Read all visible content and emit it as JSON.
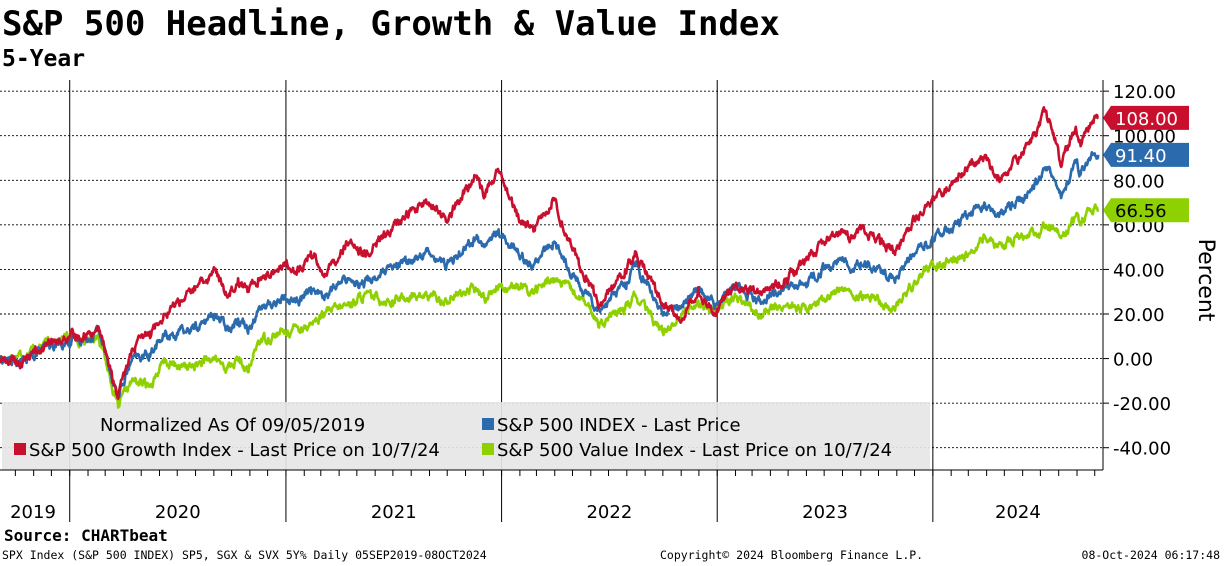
{
  "title": "S&P 500 Headline, Growth & Value Index",
  "subtitle": "5-Year",
  "source": "Source: CHARTbeat",
  "footer": {
    "left": "SPX Index (S&P 500 INDEX) SP5, SGX & SVX 5Y% Daily 05SEP2019-08OCT2024",
    "middle": "Copyright© 2024 Bloomberg Finance L.P.",
    "right": "08-Oct-2024 06:17:48"
  },
  "colors": {
    "growth": "#c8102e",
    "headline": "#2a6aad",
    "value": "#8fd100",
    "grid": "#000000",
    "legend_bg": "#e6e6e6"
  },
  "chart_data": {
    "type": "line",
    "ylabel": "Percent",
    "ylim": [
      -50,
      125
    ],
    "yticks": [
      -40,
      -20,
      0,
      20,
      40,
      60,
      80,
      100,
      120
    ],
    "ytick_labels": [
      "-40.00",
      "-20.00",
      "0.00",
      "20.00",
      "40.00",
      "60.00",
      "80.00",
      "100.00",
      "120.00"
    ],
    "xlim": [
      "2019-09-05",
      "2024-10-15"
    ],
    "year_labels": [
      "2019",
      "2020",
      "2021",
      "2022",
      "2023",
      "2024"
    ],
    "legend": {
      "placement": "bottom-left",
      "note": "Normalized As Of 09/05/2019"
    },
    "last_value_tags": [
      {
        "series": "growth",
        "label": "108.00",
        "value": 108.0
      },
      {
        "series": "headline",
        "label": "91.40",
        "value": 91.4
      },
      {
        "series": "value",
        "label": "66.56",
        "value": 66.56
      }
    ],
    "series": [
      {
        "key": "growth",
        "name": "S&P 500 Growth Index - Last Price on 10/7/24",
        "points": [
          [
            "2019-09-05",
            0
          ],
          [
            "2019-10-10",
            -2
          ],
          [
            "2019-11-15",
            5
          ],
          [
            "2019-12-31",
            9
          ],
          [
            "2020-01-31",
            11
          ],
          [
            "2020-02-19",
            14
          ],
          [
            "2020-03-23",
            -18
          ],
          [
            "2020-04-15",
            4
          ],
          [
            "2020-05-15",
            12
          ],
          [
            "2020-06-08",
            20
          ],
          [
            "2020-07-15",
            28
          ],
          [
            "2020-08-15",
            34
          ],
          [
            "2020-09-02",
            40
          ],
          [
            "2020-09-23",
            28
          ],
          [
            "2020-10-12",
            36
          ],
          [
            "2020-10-30",
            30
          ],
          [
            "2020-11-15",
            36
          ],
          [
            "2020-12-31",
            42
          ],
          [
            "2021-01-27",
            40
          ],
          [
            "2021-02-12",
            48
          ],
          [
            "2021-03-08",
            38
          ],
          [
            "2021-04-15",
            52
          ],
          [
            "2021-05-12",
            46
          ],
          [
            "2021-06-30",
            58
          ],
          [
            "2021-07-30",
            66
          ],
          [
            "2021-08-31",
            70
          ],
          [
            "2021-09-30",
            62
          ],
          [
            "2021-10-29",
            74
          ],
          [
            "2021-11-19",
            82
          ],
          [
            "2021-12-03",
            74
          ],
          [
            "2021-12-27",
            84
          ],
          [
            "2022-01-27",
            64
          ],
          [
            "2022-02-24",
            57
          ],
          [
            "2022-03-29",
            72
          ],
          [
            "2022-05-12",
            42
          ],
          [
            "2022-06-16",
            24
          ],
          [
            "2022-07-29",
            40
          ],
          [
            "2022-08-16",
            48
          ],
          [
            "2022-09-30",
            24
          ],
          [
            "2022-11-03",
            18
          ],
          [
            "2022-11-30",
            32
          ],
          [
            "2022-12-28",
            20
          ],
          [
            "2023-02-02",
            34
          ],
          [
            "2023-03-13",
            30
          ],
          [
            "2023-04-28",
            36
          ],
          [
            "2023-05-31",
            44
          ],
          [
            "2023-06-30",
            52
          ],
          [
            "2023-07-31",
            58
          ],
          [
            "2023-08-18",
            54
          ],
          [
            "2023-09-01",
            58
          ],
          [
            "2023-10-27",
            48
          ],
          [
            "2023-11-30",
            62
          ],
          [
            "2023-12-29",
            70
          ],
          [
            "2024-01-31",
            78
          ],
          [
            "2024-02-29",
            86
          ],
          [
            "2024-03-28",
            90
          ],
          [
            "2024-04-19",
            80
          ],
          [
            "2024-05-31",
            92
          ],
          [
            "2024-06-28",
            104
          ],
          [
            "2024-07-10",
            111
          ],
          [
            "2024-07-25",
            98
          ],
          [
            "2024-08-05",
            86
          ],
          [
            "2024-08-30",
            104
          ],
          [
            "2024-09-06",
            98
          ],
          [
            "2024-09-30",
            108
          ],
          [
            "2024-10-07",
            108
          ]
        ]
      },
      {
        "key": "headline",
        "name": "S&P 500 INDEX - Last Price",
        "points": [
          [
            "2019-09-05",
            0
          ],
          [
            "2019-10-10",
            -2
          ],
          [
            "2019-11-15",
            4
          ],
          [
            "2019-12-31",
            8
          ],
          [
            "2020-01-31",
            9
          ],
          [
            "2020-02-19",
            13
          ],
          [
            "2020-03-23",
            -17
          ],
          [
            "2020-04-15",
            -1
          ],
          [
            "2020-05-15",
            2
          ],
          [
            "2020-06-08",
            10
          ],
          [
            "2020-07-15",
            12
          ],
          [
            "2020-08-15",
            16
          ],
          [
            "2020-09-02",
            20
          ],
          [
            "2020-09-23",
            14
          ],
          [
            "2020-10-12",
            18
          ],
          [
            "2020-10-30",
            14
          ],
          [
            "2020-11-15",
            22
          ],
          [
            "2020-12-31",
            27
          ],
          [
            "2021-01-27",
            26
          ],
          [
            "2021-02-12",
            32
          ],
          [
            "2021-03-08",
            28
          ],
          [
            "2021-04-15",
            36
          ],
          [
            "2021-05-12",
            34
          ],
          [
            "2021-06-30",
            40
          ],
          [
            "2021-07-30",
            44
          ],
          [
            "2021-08-31",
            48
          ],
          [
            "2021-09-30",
            42
          ],
          [
            "2021-10-29",
            50
          ],
          [
            "2021-11-19",
            54
          ],
          [
            "2021-12-03",
            50
          ],
          [
            "2021-12-27",
            58
          ],
          [
            "2022-01-27",
            48
          ],
          [
            "2022-02-24",
            42
          ],
          [
            "2022-03-29",
            52
          ],
          [
            "2022-05-12",
            34
          ],
          [
            "2022-06-16",
            22
          ],
          [
            "2022-07-29",
            34
          ],
          [
            "2022-08-16",
            42
          ],
          [
            "2022-09-30",
            20
          ],
          [
            "2022-11-03",
            24
          ],
          [
            "2022-11-30",
            32
          ],
          [
            "2022-12-28",
            23
          ],
          [
            "2023-02-02",
            34
          ],
          [
            "2023-03-13",
            26
          ],
          [
            "2023-04-28",
            32
          ],
          [
            "2023-05-31",
            34
          ],
          [
            "2023-06-30",
            40
          ],
          [
            "2023-07-31",
            44
          ],
          [
            "2023-08-18",
            40
          ],
          [
            "2023-09-01",
            43
          ],
          [
            "2023-10-27",
            36
          ],
          [
            "2023-11-30",
            46
          ],
          [
            "2023-12-29",
            53
          ],
          [
            "2024-01-31",
            58
          ],
          [
            "2024-02-29",
            64
          ],
          [
            "2024-03-28",
            70
          ],
          [
            "2024-04-19",
            64
          ],
          [
            "2024-05-31",
            72
          ],
          [
            "2024-06-28",
            80
          ],
          [
            "2024-07-16",
            86
          ],
          [
            "2024-07-25",
            80
          ],
          [
            "2024-08-05",
            72
          ],
          [
            "2024-08-30",
            88
          ],
          [
            "2024-09-06",
            84
          ],
          [
            "2024-09-30",
            92
          ],
          [
            "2024-10-07",
            91.4
          ]
        ]
      },
      {
        "key": "value",
        "name": "S&P 500 Value Index - Last Price on 10/7/24",
        "points": [
          [
            "2019-09-05",
            0
          ],
          [
            "2019-10-10",
            2
          ],
          [
            "2019-11-15",
            6
          ],
          [
            "2019-12-31",
            10
          ],
          [
            "2020-01-31",
            8
          ],
          [
            "2020-02-19",
            11
          ],
          [
            "2020-03-23",
            -22
          ],
          [
            "2020-04-15",
            -10
          ],
          [
            "2020-05-15",
            -12
          ],
          [
            "2020-06-08",
            -2
          ],
          [
            "2020-07-15",
            -4
          ],
          [
            "2020-08-15",
            -2
          ],
          [
            "2020-09-02",
            0
          ],
          [
            "2020-09-23",
            -4
          ],
          [
            "2020-10-12",
            -1
          ],
          [
            "2020-10-30",
            -6
          ],
          [
            "2020-11-15",
            8
          ],
          [
            "2020-12-31",
            12
          ],
          [
            "2021-01-27",
            14
          ],
          [
            "2021-02-12",
            16
          ],
          [
            "2021-03-08",
            20
          ],
          [
            "2021-04-15",
            24
          ],
          [
            "2021-05-12",
            28
          ],
          [
            "2021-06-30",
            26
          ],
          [
            "2021-07-30",
            28
          ],
          [
            "2021-08-31",
            28
          ],
          [
            "2021-09-30",
            26
          ],
          [
            "2021-10-29",
            30
          ],
          [
            "2021-11-19",
            31
          ],
          [
            "2021-12-03",
            27
          ],
          [
            "2021-12-27",
            33
          ],
          [
            "2022-01-27",
            32
          ],
          [
            "2022-02-24",
            30
          ],
          [
            "2022-03-29",
            36
          ],
          [
            "2022-05-12",
            28
          ],
          [
            "2022-06-16",
            16
          ],
          [
            "2022-07-29",
            22
          ],
          [
            "2022-08-16",
            28
          ],
          [
            "2022-09-30",
            12
          ],
          [
            "2022-11-03",
            20
          ],
          [
            "2022-11-30",
            26
          ],
          [
            "2022-12-28",
            21
          ],
          [
            "2023-02-02",
            28
          ],
          [
            "2023-03-13",
            20
          ],
          [
            "2023-04-28",
            24
          ],
          [
            "2023-05-31",
            22
          ],
          [
            "2023-06-30",
            26
          ],
          [
            "2023-07-31",
            32
          ],
          [
            "2023-08-18",
            28
          ],
          [
            "2023-09-01",
            30
          ],
          [
            "2023-10-27",
            22
          ],
          [
            "2023-11-30",
            34
          ],
          [
            "2023-12-29",
            42
          ],
          [
            "2024-01-31",
            44
          ],
          [
            "2024-02-29",
            46
          ],
          [
            "2024-03-28",
            54
          ],
          [
            "2024-04-19",
            50
          ],
          [
            "2024-05-31",
            55
          ],
          [
            "2024-06-28",
            56
          ],
          [
            "2024-07-16",
            60
          ],
          [
            "2024-07-25",
            58
          ],
          [
            "2024-08-05",
            54
          ],
          [
            "2024-08-30",
            64
          ],
          [
            "2024-09-06",
            60
          ],
          [
            "2024-09-30",
            67
          ],
          [
            "2024-10-07",
            66.56
          ]
        ]
      }
    ]
  }
}
